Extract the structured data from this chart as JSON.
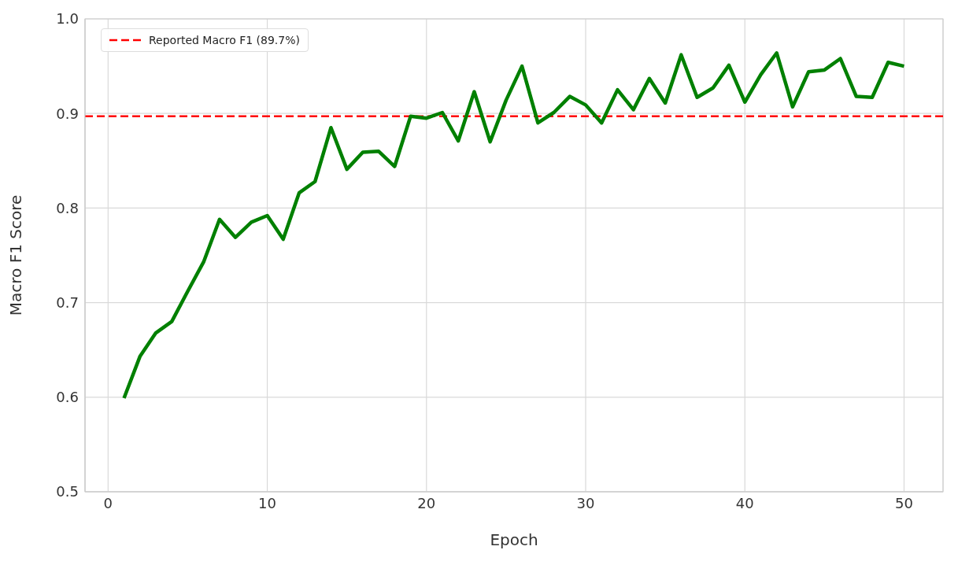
{
  "chart_data": {
    "type": "line",
    "xlabel": "Epoch",
    "ylabel": "Macro F1 Score",
    "x": [
      1,
      2,
      3,
      4,
      5,
      6,
      7,
      8,
      9,
      10,
      11,
      12,
      13,
      14,
      15,
      16,
      17,
      18,
      19,
      20,
      21,
      22,
      23,
      24,
      25,
      26,
      27,
      28,
      29,
      30,
      31,
      32,
      33,
      34,
      35,
      36,
      37,
      38,
      39,
      40,
      41,
      42,
      43,
      44,
      45,
      46,
      47,
      48,
      49,
      50
    ],
    "series": [
      {
        "color": "#008000",
        "values": [
          0.599,
          0.643,
          0.668,
          0.68,
          0.712,
          0.743,
          0.788,
          0.769,
          0.785,
          0.792,
          0.767,
          0.816,
          0.828,
          0.885,
          0.841,
          0.859,
          0.86,
          0.844,
          0.897,
          0.895,
          0.901,
          0.871,
          0.923,
          0.87,
          0.914,
          0.95,
          0.89,
          0.901,
          0.918,
          0.909,
          0.89,
          0.925,
          0.904,
          0.937,
          0.911,
          0.962,
          0.917,
          0.927,
          0.951,
          0.912,
          0.941,
          0.964,
          0.907,
          0.944,
          0.946,
          0.958,
          0.918,
          0.917,
          0.954,
          0.95
        ]
      }
    ],
    "xlim": [
      -1.45,
      52.45
    ],
    "xticks": [
      0,
      10,
      20,
      30,
      40,
      50
    ],
    "ylim": [
      0.5,
      1.0
    ],
    "yticks": [
      0.5,
      0.6,
      0.7,
      0.8,
      0.9,
      {
        "value": 1.0,
        "label": "1.0"
      }
    ],
    "ref_lines": [
      {
        "axis": "y",
        "value": 0.897,
        "label": "Reported Macro F1 (89.7%)",
        "color": "#ff0000",
        "line_style": "dashed"
      }
    ],
    "grid": true,
    "legend": "top left",
    "marker": "none",
    "line_style": "solid"
  }
}
